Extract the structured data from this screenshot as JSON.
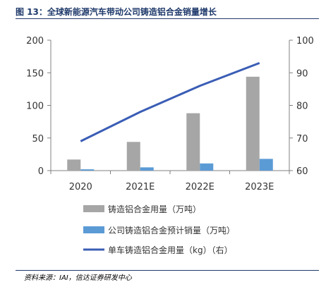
{
  "figure": {
    "title": "图 13：全球新能源汽车带动公司铸造铝合金销量增长",
    "source": "资料来源：IAI，信达证券研发中心"
  },
  "colors": {
    "title": "#1f3a6b",
    "bar_series_1": "#a6a6a6",
    "bar_series_2": "#5b9bd5",
    "line_series": "#3a5db5",
    "axis": "#808080",
    "text": "#333333"
  },
  "chart_data": {
    "type": "bar",
    "categories": [
      "2020",
      "2021E",
      "2022E",
      "2023E"
    ],
    "series": [
      {
        "name": "铸造铝合金用量（万吨）",
        "type": "bar",
        "axis": "left",
        "values": [
          17,
          44,
          88,
          144
        ]
      },
      {
        "name": "公司铸造铝合金预计销量（万吨）",
        "type": "bar",
        "axis": "left",
        "values": [
          2,
          5,
          11,
          18
        ]
      },
      {
        "name": "单车铸造铝合金用量（kg）（右）",
        "type": "line",
        "axis": "right",
        "values": [
          69,
          78,
          86,
          93
        ]
      }
    ],
    "y_left": {
      "min": 0,
      "max": 200,
      "ticks": [
        0,
        50,
        100,
        150,
        200
      ]
    },
    "y_right": {
      "min": 60,
      "max": 100,
      "ticks": [
        60,
        70,
        80,
        90,
        100
      ]
    },
    "grid": false,
    "legend_position": "bottom"
  }
}
